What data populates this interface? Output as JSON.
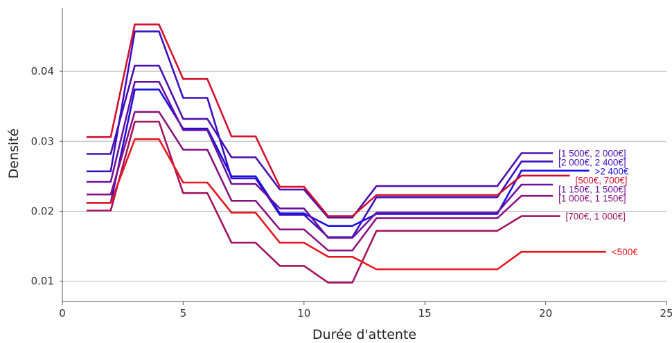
{
  "chart_data": {
    "type": "line",
    "xlabel": "Durée d'attente",
    "ylabel": "Densité",
    "xlim": [
      0,
      25
    ],
    "ylim": [
      0.0075,
      0.049
    ],
    "xticks": [
      0,
      5,
      10,
      15,
      20,
      25
    ],
    "yticks": [
      0.01,
      0.02,
      0.03,
      0.04
    ],
    "x_tick_labels": [
      "0",
      "5",
      "10",
      "15",
      "20",
      "25"
    ],
    "y_tick_labels": [
      "0.01",
      "0.02",
      "0.03",
      "0.04"
    ],
    "grid": "horizontal",
    "legend": "inline labels at line ends",
    "x": [
      1,
      2,
      3,
      4,
      5,
      6,
      7,
      8,
      9,
      10,
      11,
      12,
      13,
      14,
      15,
      16,
      17,
      18,
      19,
      20
    ],
    "series": [
      {
        "name": "[1 500€, 2 000€]",
        "color": "#4b0fb0",
        "end_x": 20.3,
        "values": [
          0.0282,
          0.0282,
          0.0408,
          0.0408,
          0.0332,
          0.0332,
          0.0277,
          0.0277,
          0.0231,
          0.0231,
          0.0191,
          0.0191,
          0.0236,
          0.0236,
          0.0236,
          0.0236,
          0.0236,
          0.0236,
          0.0283,
          0.0283
        ]
      },
      {
        "name": "[2 000€, 2 400€]",
        "color": "#3a10c2",
        "end_x": 20.3,
        "values": [
          0.0257,
          0.0257,
          0.0457,
          0.0457,
          0.0362,
          0.0362,
          0.0247,
          0.0247,
          0.0195,
          0.0195,
          0.0163,
          0.0163,
          0.022,
          0.022,
          0.022,
          0.022,
          0.022,
          0.022,
          0.0271,
          0.0271
        ]
      },
      {
        "name": ">2 400€",
        "color": "#1a10e0",
        "end_x": 21.8,
        "values": [
          0.0212,
          0.0212,
          0.0374,
          0.0374,
          0.0318,
          0.0318,
          0.025,
          0.025,
          0.0197,
          0.0197,
          0.0179,
          0.0179,
          0.0196,
          0.0196,
          0.0196,
          0.0196,
          0.0196,
          0.0196,
          0.0258,
          0.0258
        ]
      },
      {
        "name": "[500€, 700€]",
        "color": "#d21030",
        "end_x": 21.0,
        "values": [
          0.0306,
          0.0306,
          0.0467,
          0.0467,
          0.0389,
          0.0389,
          0.0307,
          0.0307,
          0.0235,
          0.0235,
          0.0193,
          0.0193,
          0.0223,
          0.0223,
          0.0223,
          0.0223,
          0.0223,
          0.0223,
          0.0251,
          0.0251
        ]
      },
      {
        "name": "[1 150€, 1 500€]",
        "color": "#6a10a0",
        "end_x": 20.3,
        "values": [
          0.0242,
          0.0242,
          0.0385,
          0.0385,
          0.0316,
          0.0316,
          0.0239,
          0.0239,
          0.0204,
          0.0204,
          0.0162,
          0.0162,
          0.0198,
          0.0198,
          0.0198,
          0.0198,
          0.0198,
          0.0198,
          0.0238,
          0.0238
        ]
      },
      {
        "name": "[1 000€, 1 150€]",
        "color": "#8a1280",
        "end_x": 20.3,
        "values": [
          0.0224,
          0.0224,
          0.0342,
          0.0342,
          0.0288,
          0.0288,
          0.0215,
          0.0215,
          0.0174,
          0.0174,
          0.0144,
          0.0144,
          0.019,
          0.019,
          0.019,
          0.019,
          0.019,
          0.019,
          0.0222,
          0.0222
        ]
      },
      {
        "name": "[700€, 1 000€]",
        "color": "#a3135e",
        "end_x": 20.6,
        "values": [
          0.0201,
          0.0201,
          0.0328,
          0.0328,
          0.0226,
          0.0226,
          0.0155,
          0.0155,
          0.0122,
          0.0122,
          0.0098,
          0.0098,
          0.0172,
          0.0172,
          0.0172,
          0.0172,
          0.0172,
          0.0172,
          0.0193,
          0.0193
        ]
      },
      {
        "name": "<500€",
        "color": "#e8161e",
        "end_x": 22.5,
        "values": [
          0.0212,
          0.0212,
          0.0303,
          0.0303,
          0.0241,
          0.0241,
          0.0198,
          0.0198,
          0.0155,
          0.0155,
          0.0135,
          0.0135,
          0.0117,
          0.0117,
          0.0117,
          0.0117,
          0.0117,
          0.0117,
          0.0142,
          0.0142
        ]
      }
    ]
  }
}
